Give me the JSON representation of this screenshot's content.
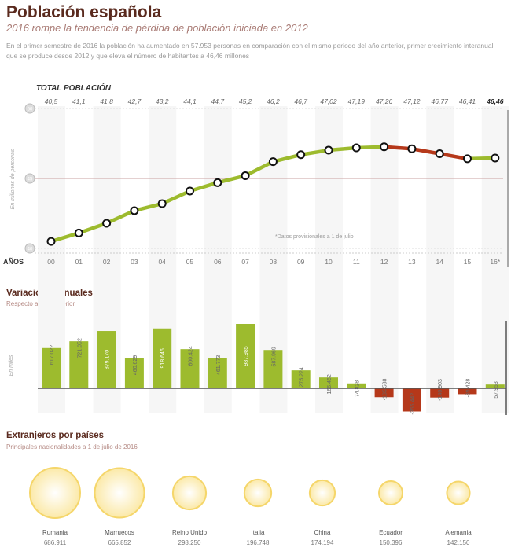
{
  "title": "Población española",
  "subtitle": "2016 rompe la tendencia de pérdida de población iniciada en 2012",
  "intro": "En el primer semestre de 2016 la población ha aumentado en 57.953 personas en comparación con el mismo periodo del año anterior, primer crecimiento interanual que se produce desde 2012 y que eleva el número de habitantes a 46,46 millones",
  "colors": {
    "growth": "#9dbb2e",
    "decline": "#b5381a",
    "title": "#5a2a1e",
    "bubble": "#f5d66a"
  },
  "chart_data": [
    {
      "type": "line",
      "title": "TOTAL POBLACIÓN",
      "xlabel": "AÑOS",
      "ylabel": "En millones de personas",
      "ylim": [
        40,
        50
      ],
      "yticks": [
        40,
        45,
        50
      ],
      "categories": [
        "00",
        "01",
        "02",
        "03",
        "04",
        "05",
        "06",
        "07",
        "08",
        "09",
        "10",
        "11",
        "12",
        "13",
        "14",
        "15",
        "16*"
      ],
      "value_labels": [
        "40,5",
        "41,1",
        "41,8",
        "42,7",
        "43,2",
        "44,1",
        "44,7",
        "45,2",
        "46,2",
        "46,7",
        "47,02",
        "47,19",
        "47,26",
        "47,12",
        "46,77",
        "46,41",
        "46,46"
      ],
      "values": [
        40.5,
        41.1,
        41.8,
        42.7,
        43.2,
        44.1,
        44.7,
        45.2,
        46.2,
        46.7,
        47.02,
        47.19,
        47.26,
        47.12,
        46.77,
        46.41,
        46.46
      ],
      "note": "*Datos provisionales a 1 de julio"
    },
    {
      "type": "bar",
      "title": "Variaciones anuales",
      "subtitle": "Respecto al año anterior",
      "ylabel": "En miles",
      "categories": [
        "00",
        "01",
        "02",
        "03",
        "04",
        "05",
        "06",
        "07",
        "08",
        "09",
        "10",
        "11",
        "12",
        "13",
        "14",
        "15",
        "16*"
      ],
      "value_labels": [
        "617.022",
        "721.052",
        "879.170",
        "460.629",
        "918.646",
        "600.424",
        "461.773",
        "987.985",
        "587.969",
        "275.224",
        "166.462",
        "74.828",
        "-135.538",
        "-355.442",
        "-140.903",
        "-89.428",
        "57.953"
      ],
      "values": [
        617022,
        721052,
        879170,
        460629,
        918646,
        600424,
        461773,
        987985,
        587969,
        275224,
        166462,
        74828,
        -135538,
        -355442,
        -140903,
        -89428,
        57953
      ]
    },
    {
      "type": "bubble",
      "title": "Extranjeros por países",
      "subtitle": "Principales nacionalidades a 1 de julio de 2016",
      "categories": [
        "Rumania",
        "Marruecos",
        "Reino Unido",
        "Italia",
        "China",
        "Ecuador",
        "Alemania"
      ],
      "value_labels": [
        "686.911",
        "665.852",
        "298.250",
        "196.748",
        "174.194",
        "150.396",
        "142.150"
      ],
      "values": [
        686911,
        665852,
        298250,
        196748,
        174194,
        150396,
        142150
      ]
    }
  ]
}
